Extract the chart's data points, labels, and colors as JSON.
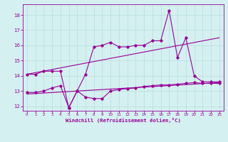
{
  "line1_x": [
    0,
    1,
    2,
    3,
    4,
    5,
    6,
    7,
    8,
    9,
    10,
    11,
    12,
    13,
    14,
    15,
    16,
    17,
    18,
    19,
    20,
    21,
    22,
    23
  ],
  "line1_y": [
    14.1,
    14.1,
    14.3,
    14.3,
    14.3,
    11.9,
    13.0,
    14.1,
    15.9,
    16.0,
    16.2,
    15.9,
    15.9,
    16.0,
    16.0,
    16.3,
    16.3,
    18.3,
    15.2,
    16.5,
    14.0,
    13.6,
    13.6,
    13.6
  ],
  "line2_x": [
    0,
    23
  ],
  "line2_y": [
    14.1,
    16.5
  ],
  "line3_x": [
    0,
    1,
    2,
    3,
    4,
    5,
    6,
    7,
    8,
    9,
    10,
    11,
    12,
    13,
    14,
    15,
    16,
    17,
    18,
    19,
    20,
    21,
    22,
    23
  ],
  "line3_y": [
    12.9,
    12.9,
    13.0,
    13.2,
    13.35,
    11.9,
    13.0,
    12.6,
    12.5,
    12.5,
    13.0,
    13.1,
    13.15,
    13.2,
    13.3,
    13.35,
    13.4,
    13.4,
    13.45,
    13.5,
    13.55,
    13.5,
    13.5,
    13.5
  ],
  "line4_x": [
    0,
    23
  ],
  "line4_y": [
    12.8,
    13.55
  ],
  "line_color": "#990099",
  "bg_color": "#d4f0f0",
  "grid_color": "#b8dede",
  "xlabel": "Windchill (Refroidissement éolien,°C)",
  "ylim": [
    11.7,
    18.7
  ],
  "xlim": [
    -0.5,
    23.5
  ],
  "yticks": [
    12,
    13,
    14,
    15,
    16,
    17,
    18
  ],
  "xticks": [
    0,
    1,
    2,
    3,
    4,
    5,
    6,
    7,
    8,
    9,
    10,
    11,
    12,
    13,
    14,
    15,
    16,
    17,
    18,
    19,
    20,
    21,
    22,
    23
  ]
}
